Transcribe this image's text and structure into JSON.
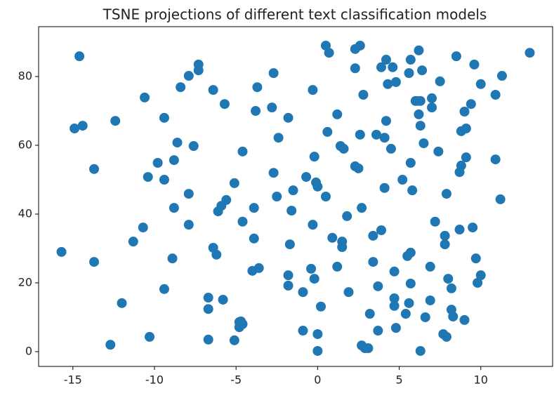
{
  "chart_data": {
    "type": "scatter",
    "title": "TSNE projections of different text classification models",
    "color": "#1f77b4",
    "xlim": [
      -17.1,
      14.4
    ],
    "ylim": [
      -4.3,
      94.5
    ],
    "xticks": [
      -15,
      -10,
      -5,
      0,
      5,
      10
    ],
    "yticks": [
      0,
      20,
      40,
      60,
      80
    ],
    "grid": false,
    "series": [
      {
        "name": null,
        "color": "#1f77b4",
        "x": [
          -14.6,
          -14.9,
          -14.4,
          -13.7,
          -12.4,
          -15.7,
          -13.7,
          -12.0,
          -12.7,
          -10.6,
          -10.4,
          -9.8,
          -9.4,
          -9.4,
          -10.7,
          -11.3,
          -10.3,
          -9.4,
          -8.9,
          -8.8,
          -8.8,
          -8.6,
          -8.4,
          -7.9,
          -7.3,
          -7.3,
          -7.9,
          -7.9,
          -7.6,
          -6.4,
          -5.7,
          -6.7,
          -6.7,
          -6.7,
          -5.8,
          -6.4,
          -6.2,
          -6.1,
          -5.9,
          -5.6,
          -5.1,
          -4.6,
          -4.6,
          -5.1,
          -4.8,
          -4.7,
          -4.6,
          -4.8,
          -3.9,
          -3.9,
          -4.0,
          -3.6,
          -3.7,
          -3.8,
          -2.7,
          -2.8,
          -2.4,
          -2.7,
          -2.5,
          -1.8,
          -1.5,
          -1.6,
          -1.7,
          -1.8,
          -1.8,
          -0.9,
          -0.9,
          -0.7,
          -0.3,
          -0.2,
          -0.1,
          0.0,
          -0.3,
          -0.4,
          -0.2,
          0.2,
          0.0,
          0.0,
          0.5,
          0.5,
          0.7,
          0.6,
          0.9,
          1.2,
          1.2,
          1.4,
          1.6,
          1.5,
          1.5,
          1.8,
          1.9,
          2.3,
          2.3,
          2.5,
          2.3,
          2.6,
          2.6,
          2.7,
          2.8,
          2.7,
          2.9,
          3.1,
          3.2,
          3.4,
          3.4,
          3.6,
          3.7,
          3.7,
          3.9,
          3.9,
          4.1,
          4.1,
          4.2,
          4.2,
          4.3,
          4.5,
          4.6,
          4.7,
          4.8,
          4.7,
          4.7,
          4.8,
          5.2,
          5.4,
          5.5,
          5.7,
          5.6,
          5.7,
          5.7,
          5.7,
          5.6,
          5.8,
          6.0,
          6.2,
          6.1,
          6.3,
          6.2,
          6.3,
          6.4,
          6.5,
          6.3,
          6.6,
          6.9,
          6.9,
          7.0,
          7.0,
          7.2,
          7.4,
          7.5,
          7.7,
          7.9,
          7.8,
          7.8,
          7.9,
          8.0,
          8.2,
          8.2,
          8.3,
          8.5,
          8.7,
          8.7,
          8.8,
          8.8,
          9.0,
          9.1,
          9.1,
          9.0,
          9.4,
          9.6,
          9.5,
          9.7,
          9.8,
          10.0,
          10.0,
          10.9,
          10.9,
          11.2,
          11.3,
          13.0
        ],
        "values": [
          85.9,
          64.9,
          65.7,
          53.1,
          67.1,
          29.0,
          26.1,
          14.1,
          2.0,
          73.9,
          50.8,
          54.9,
          50.0,
          68.0,
          36.1,
          32.0,
          4.3,
          18.2,
          27.1,
          41.8,
          55.7,
          60.8,
          76.9,
          80.2,
          83.5,
          81.8,
          45.9,
          36.9,
          59.8,
          76.1,
          72.0,
          3.5,
          15.7,
          12.4,
          15.1,
          30.2,
          28.2,
          40.8,
          42.4,
          44.1,
          49.0,
          58.2,
          37.8,
          3.3,
          7.1,
          8.8,
          8.0,
          8.6,
          41.8,
          32.9,
          23.5,
          24.3,
          76.9,
          70.0,
          81.0,
          71.0,
          62.2,
          52.0,
          45.1,
          68.0,
          46.9,
          41.0,
          31.2,
          22.2,
          19.2,
          17.3,
          6.1,
          50.8,
          76.1,
          56.7,
          49.2,
          48.0,
          36.9,
          24.1,
          21.2,
          13.1,
          5.1,
          0.2,
          45.1,
          89.0,
          86.9,
          63.9,
          33.1,
          69.0,
          24.7,
          59.8,
          59.0,
          32.0,
          30.4,
          39.4,
          17.3,
          82.4,
          53.9,
          53.3,
          88.0,
          89.0,
          63.1,
          41.8,
          74.7,
          1.8,
          1.0,
          1.0,
          11.0,
          26.1,
          33.7,
          63.1,
          19.0,
          6.1,
          82.7,
          35.3,
          47.6,
          62.2,
          84.9,
          67.1,
          77.8,
          59.0,
          82.7,
          23.3,
          78.4,
          15.5,
          13.3,
          6.9,
          50.0,
          11.0,
          27.8,
          28.8,
          81.0,
          84.9,
          54.9,
          19.8,
          14.1,
          46.9,
          72.9,
          87.6,
          72.9,
          72.9,
          69.0,
          65.7,
          81.8,
          60.6,
          0.2,
          10.0,
          24.7,
          14.9,
          73.7,
          71.0,
          37.8,
          58.2,
          78.6,
          5.1,
          4.3,
          31.2,
          33.7,
          45.9,
          21.2,
          18.4,
          12.2,
          10.2,
          85.9,
          35.5,
          52.2,
          54.1,
          64.1,
          69.8,
          64.9,
          56.5,
          9.2,
          72.0,
          83.5,
          36.1,
          27.1,
          20.0,
          22.2,
          77.8,
          74.7,
          55.9,
          44.3,
          80.2,
          86.9
        ]
      }
    ]
  }
}
